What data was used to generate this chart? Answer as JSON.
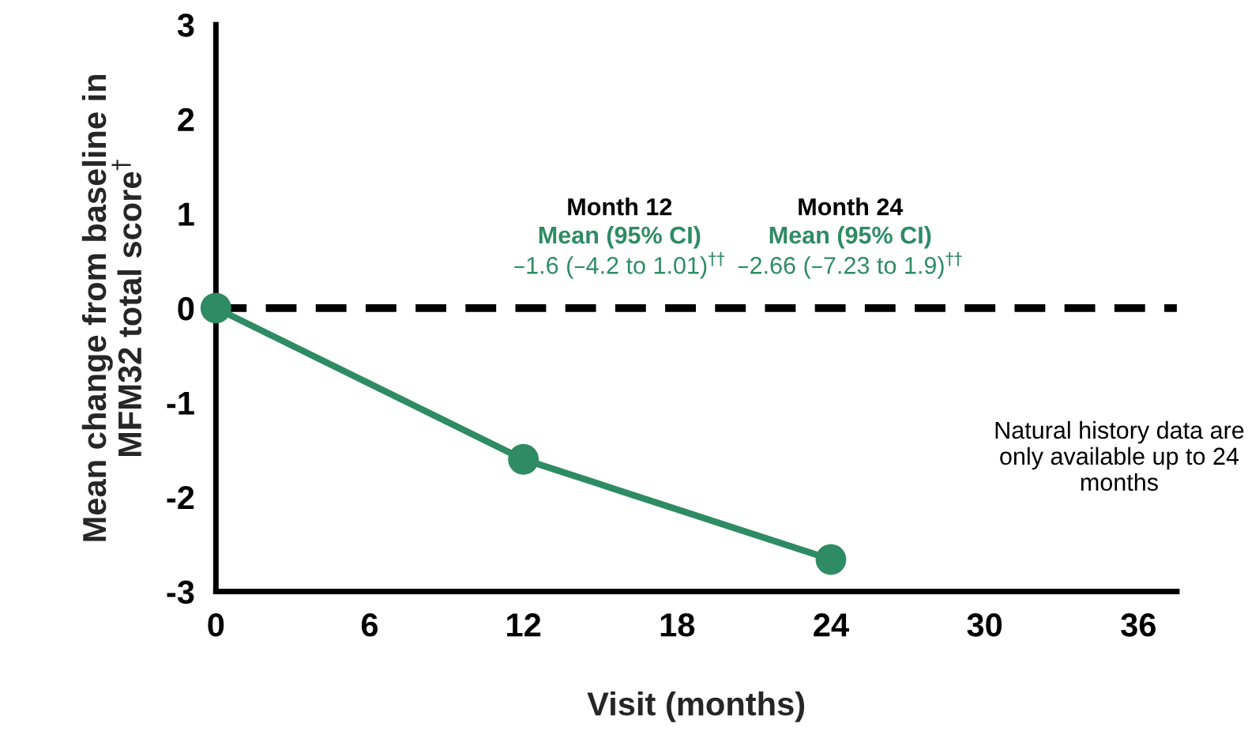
{
  "chart_data": {
    "type": "line",
    "xlabel": "Visit (months)",
    "ylabel": "Mean change from baseline in\nMFM32 total score$^{†}$",
    "x": [
      0,
      12,
      24
    ],
    "series": [
      {
        "color": "#2e8b64",
        "values": [
          0,
          -1.6,
          -2.66
        ]
      }
    ],
    "xlim": [
      0,
      37.5
    ],
    "xticks": [
      0,
      6,
      12,
      18,
      24,
      30,
      36
    ],
    "ylim": [
      -3,
      3
    ],
    "yticks": [
      -3,
      -2,
      -1,
      0,
      1,
      2,
      3
    ],
    "ref_lines": [
      {
        "axis": "y",
        "value": 0,
        "color": "#000000",
        "line_style": "dashed"
      }
    ],
    "annotations": [
      "Month 12",
      "Mean (95% CI)",
      "–1.6 (–4.2 to 1.01)$^{††}$",
      "Month 24",
      "Mean (95% CI)",
      "–2.66 (–7.23 to 1.9)$^{††}$",
      "Natural history data are\nonly available up to 24\nmonths"
    ],
    "marker": "circle",
    "line_style": "solid",
    "grid": false,
    "legend": false
  }
}
